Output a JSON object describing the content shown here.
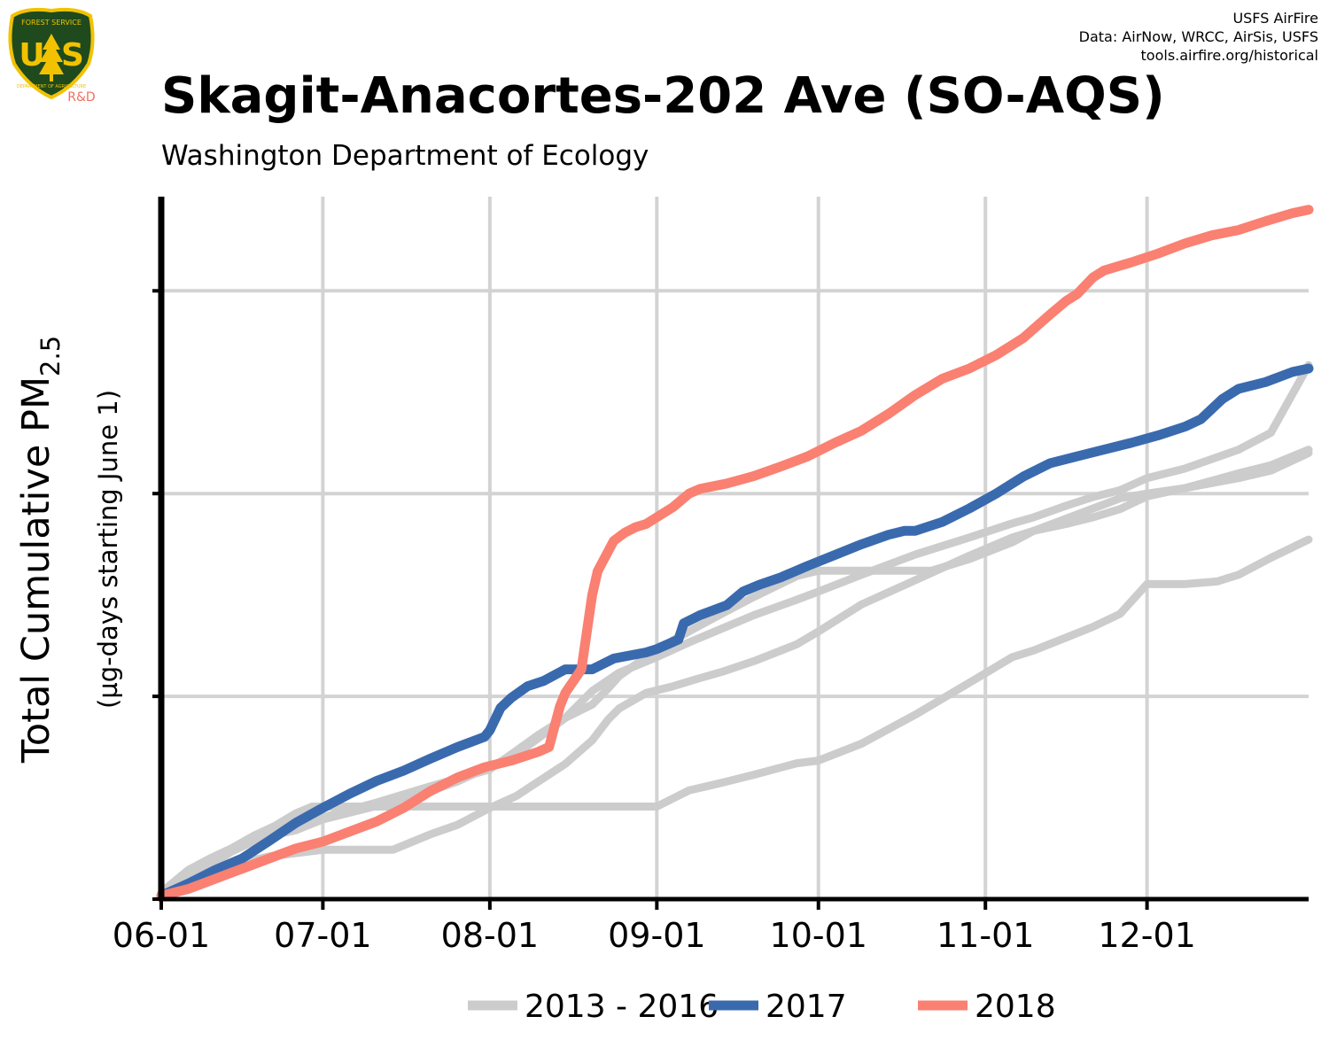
{
  "header": {
    "credit_lines": [
      "USFS AirFire",
      "Data: AirNow, WRCC, AirSis, USFS",
      "tools.airfire.org/historical"
    ],
    "logo": {
      "top_text": "FOREST SERVICE",
      "letters_left": "U",
      "letters_right": "S",
      "bottom_text": "DEPARTMENT OF AGRICULTURE",
      "tag": "R&D"
    }
  },
  "colors": {
    "background_years": "#cccccc",
    "year_2017": "#3a6aae",
    "year_2018": "#fa8072",
    "grid": "#d3d3d3",
    "axis": "#000000",
    "logo_shield": "#1f4a1e",
    "logo_gold": "#f2c200",
    "logo_tag": "#f07060"
  },
  "chart_data": {
    "type": "line",
    "title": "Skagit-Anacortes-202 Ave (SO-AQS)",
    "subtitle": "Washington Department of Ecology",
    "ylabel_main": "Total Cumulative PM",
    "ylabel_sub": "2.5",
    "ylabel_secondary": "(µg-days starting June 1)",
    "x_tick_labels": [
      "06-01",
      "07-01",
      "08-01",
      "09-01",
      "10-01",
      "11-01",
      "12-01"
    ],
    "x_tick_days": [
      0,
      30,
      61,
      92,
      122,
      153,
      183
    ],
    "xlim_days": [
      0,
      213
    ],
    "ylim": [
      0,
      100
    ],
    "y_gridlines": [
      30,
      60,
      90
    ],
    "grid": true,
    "legend_position": "bottom",
    "legend": [
      {
        "label": "2013 - 2016",
        "color": "#cccccc"
      },
      {
        "label": "2017",
        "color": "#3a6aae"
      },
      {
        "label": "2018",
        "color": "#fa8072"
      }
    ],
    "series": [
      {
        "group": "background",
        "x": [
          0,
          5,
          9,
          13,
          17,
          21,
          25,
          28,
          35,
          40,
          45,
          50,
          55,
          60,
          66,
          75,
          85,
          92,
          98,
          104,
          110,
          118,
          122,
          130,
          140,
          150,
          158,
          162,
          168,
          173,
          178,
          183,
          190,
          196,
          200,
          206,
          213
        ],
        "y": [
          1.0,
          4.3,
          6.0,
          7.5,
          9.3,
          10.8,
          12.7,
          13.7,
          13.7,
          13.7,
          13.7,
          13.7,
          13.7,
          13.7,
          13.7,
          13.7,
          13.7,
          13.7,
          16.1,
          17.2,
          18.4,
          20.1,
          20.5,
          23.0,
          27.3,
          32.0,
          35.8,
          36.8,
          38.7,
          40.3,
          42.2,
          46.6,
          46.6,
          47.0,
          48.0,
          50.5,
          53.2
        ]
      },
      {
        "group": "background",
        "x": [
          0,
          5,
          10,
          20,
          30,
          40,
          43,
          50,
          55,
          61,
          66,
          70,
          75,
          80,
          83,
          85,
          90,
          95,
          100,
          104,
          110,
          118,
          122,
          130,
          140,
          150,
          158,
          162,
          168,
          173,
          178,
          183,
          190,
          200,
          206,
          213
        ],
        "y": [
          0.5,
          2.3,
          4.5,
          6.3,
          7.3,
          7.3,
          7.3,
          9.6,
          11.0,
          13.5,
          15.3,
          17.4,
          20.0,
          23.5,
          26.6,
          28.2,
          30.5,
          31.5,
          32.7,
          33.6,
          35.2,
          37.7,
          39.6,
          43.6,
          47.2,
          50.8,
          53.5,
          54.5,
          56.3,
          57.8,
          59.3,
          60.0,
          60.8,
          62.3,
          63.4,
          66.0
        ]
      },
      {
        "group": "background",
        "x": [
          0,
          5,
          10,
          20,
          30,
          40,
          50,
          61,
          66,
          70,
          75,
          80,
          83,
          85,
          90,
          95,
          100,
          104,
          110,
          118,
          122,
          128,
          135,
          143,
          150,
          158,
          162,
          168,
          173,
          178,
          183,
          190,
          200,
          206,
          213
        ],
        "y": [
          0.8,
          3.8,
          6.3,
          9.8,
          12.1,
          14.3,
          16.7,
          19.2,
          22.0,
          24.3,
          26.8,
          28.8,
          31.2,
          33.0,
          35.8,
          38.3,
          40.5,
          42.2,
          44.7,
          47.8,
          48.6,
          48.6,
          48.6,
          48.6,
          50.3,
          52.8,
          54.5,
          55.5,
          56.5,
          57.7,
          59.6,
          60.8,
          63.0,
          64.2,
          66.5
        ]
      },
      {
        "group": "background",
        "x": [
          0,
          5,
          9,
          13,
          17,
          21,
          25,
          30,
          40,
          50,
          55,
          61,
          66,
          70,
          75,
          80,
          85,
          92,
          98,
          104,
          110,
          118,
          122,
          130,
          140,
          150,
          158,
          162,
          168,
          173,
          178,
          183,
          190,
          200,
          206,
          213
        ],
        "y": [
          0.5,
          3.0,
          5.0,
          7.0,
          8.5,
          9.5,
          10.2,
          11.8,
          13.8,
          16.0,
          17.4,
          19.6,
          21.5,
          23.8,
          26.8,
          30.8,
          33.5,
          35.8,
          38.0,
          40.0,
          42.0,
          44.3,
          45.5,
          48.0,
          51.0,
          53.5,
          55.6,
          56.5,
          58.2,
          59.5,
          60.5,
          62.3,
          63.7,
          66.5,
          69.0,
          79.0
        ]
      },
      {
        "group": "2017",
        "x": [
          0,
          5,
          10,
          15,
          20,
          25,
          30,
          35,
          40,
          45,
          50,
          55,
          60,
          61,
          63,
          65,
          68,
          71,
          75,
          80,
          84,
          90,
          92,
          96,
          97,
          100,
          105,
          108,
          111,
          115,
          120,
          125,
          130,
          135,
          138,
          140,
          145,
          150,
          155,
          160,
          165,
          170,
          175,
          180,
          185,
          190,
          193,
          197,
          200,
          205,
          210,
          213
        ],
        "y": [
          0.5,
          2.3,
          4.3,
          6.0,
          8.6,
          11.3,
          13.5,
          15.6,
          17.5,
          19.0,
          20.8,
          22.5,
          24.0,
          25.0,
          28.3,
          29.8,
          31.5,
          32.3,
          34.0,
          34.0,
          35.6,
          36.5,
          37.0,
          38.4,
          40.8,
          42.0,
          43.5,
          45.5,
          46.5,
          47.6,
          49.3,
          50.9,
          52.5,
          53.9,
          54.5,
          54.5,
          55.8,
          57.8,
          60.0,
          62.5,
          64.5,
          65.5,
          66.5,
          67.5,
          68.6,
          69.9,
          71.0,
          74.0,
          75.5,
          76.5,
          78.0,
          78.5
        ]
      },
      {
        "group": "2018",
        "x": [
          0,
          5,
          10,
          15,
          20,
          25,
          30,
          35,
          40,
          45,
          50,
          55,
          60,
          65,
          70,
          72,
          74,
          75,
          78,
          80,
          81,
          82,
          84,
          86,
          88,
          90,
          95,
          98,
          100,
          105,
          110,
          115,
          120,
          125,
          130,
          135,
          140,
          145,
          150,
          155,
          160,
          165,
          168,
          170,
          173,
          175,
          180,
          185,
          190,
          195,
          200,
          205,
          210,
          213
        ],
        "y": [
          0.5,
          1.5,
          3.0,
          4.5,
          6.0,
          7.5,
          8.5,
          10.0,
          11.5,
          13.5,
          16.0,
          18.0,
          19.5,
          20.5,
          21.8,
          22.5,
          28.5,
          30.5,
          34.0,
          45.0,
          48.5,
          50.0,
          53.0,
          54.2,
          55.0,
          55.5,
          58.0,
          60.0,
          60.7,
          61.5,
          62.6,
          64.0,
          65.5,
          67.5,
          69.3,
          71.8,
          74.6,
          77.0,
          78.5,
          80.5,
          83.0,
          86.5,
          88.5,
          89.5,
          92.0,
          93.0,
          94.2,
          95.5,
          97.0,
          98.2,
          99.0,
          100.3,
          101.5,
          102.0
        ]
      }
    ]
  }
}
